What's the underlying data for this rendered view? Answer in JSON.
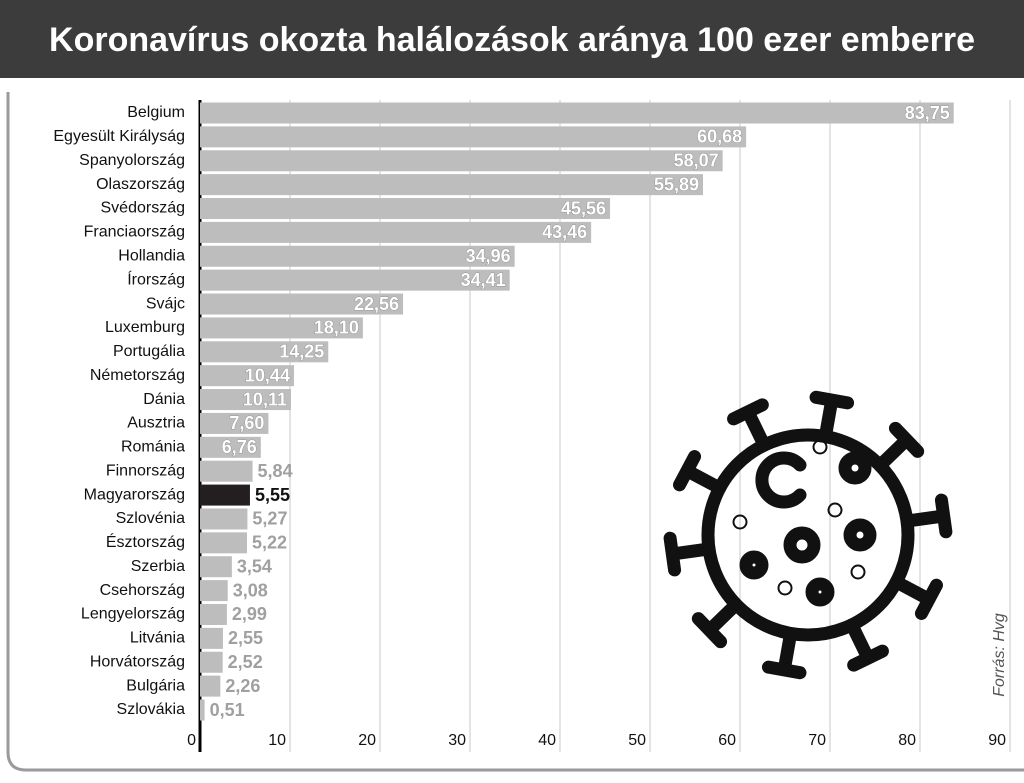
{
  "chart_data": {
    "type": "barh",
    "title": "Koronavírus okozta halálozások aránya 100 ezer emberre",
    "source": "Forrás: Hvg",
    "categories": [
      "Belgium",
      "Egyesült Királyság",
      "Spanyolország",
      "Olaszország",
      "Svédország",
      "Franciaország",
      "Hollandia",
      "Írország",
      "Svájc",
      "Luxemburg",
      "Portugália",
      "Németország",
      "Dánia",
      "Ausztria",
      "Románia",
      "Finnország",
      "Magyarország",
      "Szlovénia",
      "Észtország",
      "Szerbia",
      "Csehország",
      "Lengyelország",
      "Litvánia",
      "Horvátország",
      "Bulgária",
      "Szlovákia"
    ],
    "values": [
      83.75,
      60.68,
      58.07,
      55.89,
      45.56,
      43.46,
      34.96,
      34.41,
      22.56,
      18.1,
      14.25,
      10.44,
      10.11,
      7.6,
      6.76,
      5.84,
      5.55,
      5.27,
      5.22,
      3.54,
      3.08,
      2.99,
      2.55,
      2.52,
      2.26,
      0.51
    ],
    "value_labels": [
      "83,75",
      "60,68",
      "58,07",
      "55,89",
      "45,56",
      "43,46",
      "34,96",
      "34,41",
      "22,56",
      "18,10",
      "14,25",
      "10,44",
      "10,11",
      "7,60",
      "6,76",
      "5,84",
      "5,55",
      "5,27",
      "5,22",
      "3,54",
      "3,08",
      "2,99",
      "2,55",
      "2,52",
      "2,26",
      "0,51"
    ],
    "colors": [
      "#bdbdbd",
      "#bdbdbd",
      "#bdbdbd",
      "#bdbdbd",
      "#bdbdbd",
      "#bdbdbd",
      "#bdbdbd",
      "#bdbdbd",
      "#bdbdbd",
      "#bdbdbd",
      "#bdbdbd",
      "#bdbdbd",
      "#bdbdbd",
      "#bdbdbd",
      "#bdbdbd",
      "#bdbdbd",
      "#231f20",
      "#bdbdbd",
      "#bdbdbd",
      "#bdbdbd",
      "#bdbdbd",
      "#bdbdbd",
      "#bdbdbd",
      "#bdbdbd",
      "#bdbdbd",
      "#bdbdbd"
    ],
    "xlim": [
      0,
      90
    ],
    "xticks": [
      0,
      10,
      20,
      30,
      40,
      50,
      60,
      70,
      80,
      90
    ],
    "grid": true
  }
}
